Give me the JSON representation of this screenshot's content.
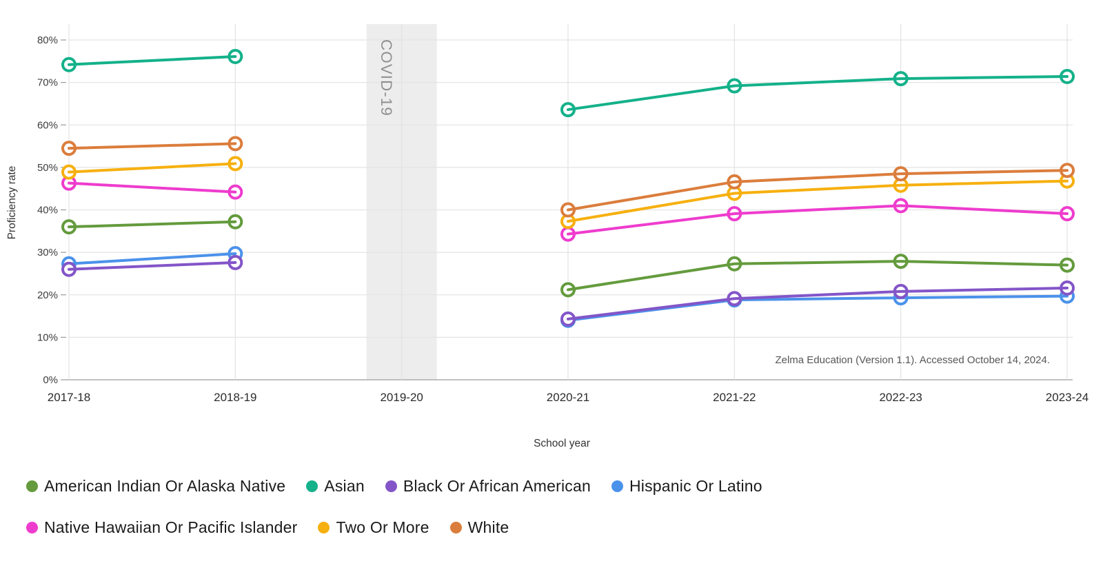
{
  "chart_data": {
    "type": "line",
    "title": "",
    "xlabel": "School year",
    "ylabel": "Proficiency rate",
    "x_categories": [
      "2017-18",
      "2018-19",
      "2019-20",
      "2020-21",
      "2021-22",
      "2022-23",
      "2023-24"
    ],
    "y_ticks": [
      "0%",
      "10%",
      "20%",
      "30%",
      "40%",
      "50%",
      "60%",
      "70%",
      "80%"
    ],
    "ylim": [
      0,
      84
    ],
    "y_tick_step": 10,
    "grid": true,
    "legend_position": "bottom",
    "series": [
      {
        "name": "American Indian Or Alaska Native",
        "color": "#649b3d",
        "values": [
          36.0,
          37.2,
          null,
          21.2,
          27.3,
          27.9,
          27.0
        ]
      },
      {
        "name": "Asian",
        "color": "#14b18a",
        "values": [
          74.2,
          76.1,
          null,
          63.6,
          69.2,
          70.9,
          71.4
        ]
      },
      {
        "name": "Black Or African American",
        "color": "#8355c8",
        "values": [
          26.0,
          27.6,
          null,
          14.3,
          19.1,
          20.8,
          21.6
        ]
      },
      {
        "name": "Hispanic Or Latino",
        "color": "#4b92ea",
        "values": [
          27.3,
          29.7,
          null,
          14.0,
          18.8,
          19.3,
          19.7
        ]
      },
      {
        "name": "Native Hawaiian Or Pacific Islander",
        "color": "#ee3ccd",
        "values": [
          46.3,
          44.2,
          null,
          34.3,
          39.1,
          41.0,
          39.1
        ]
      },
      {
        "name": "Two Or More",
        "color": "#f6b00f",
        "values": [
          48.9,
          50.9,
          null,
          37.3,
          43.9,
          45.8,
          46.8
        ]
      },
      {
        "name": "White",
        "color": "#db7d3c",
        "values": [
          54.5,
          55.6,
          null,
          40.0,
          46.6,
          48.5,
          49.3
        ]
      }
    ],
    "annotation_band": {
      "category": "2019-20",
      "label": "COVID-19",
      "band_color": "#ededed",
      "label_color": "#909090"
    },
    "source_note": "Zelma Education (Version 1.1). Accessed October 14, 2024."
  },
  "legend": {
    "rows": [
      [
        0,
        1,
        2,
        3
      ],
      [
        4,
        5,
        6
      ]
    ]
  }
}
